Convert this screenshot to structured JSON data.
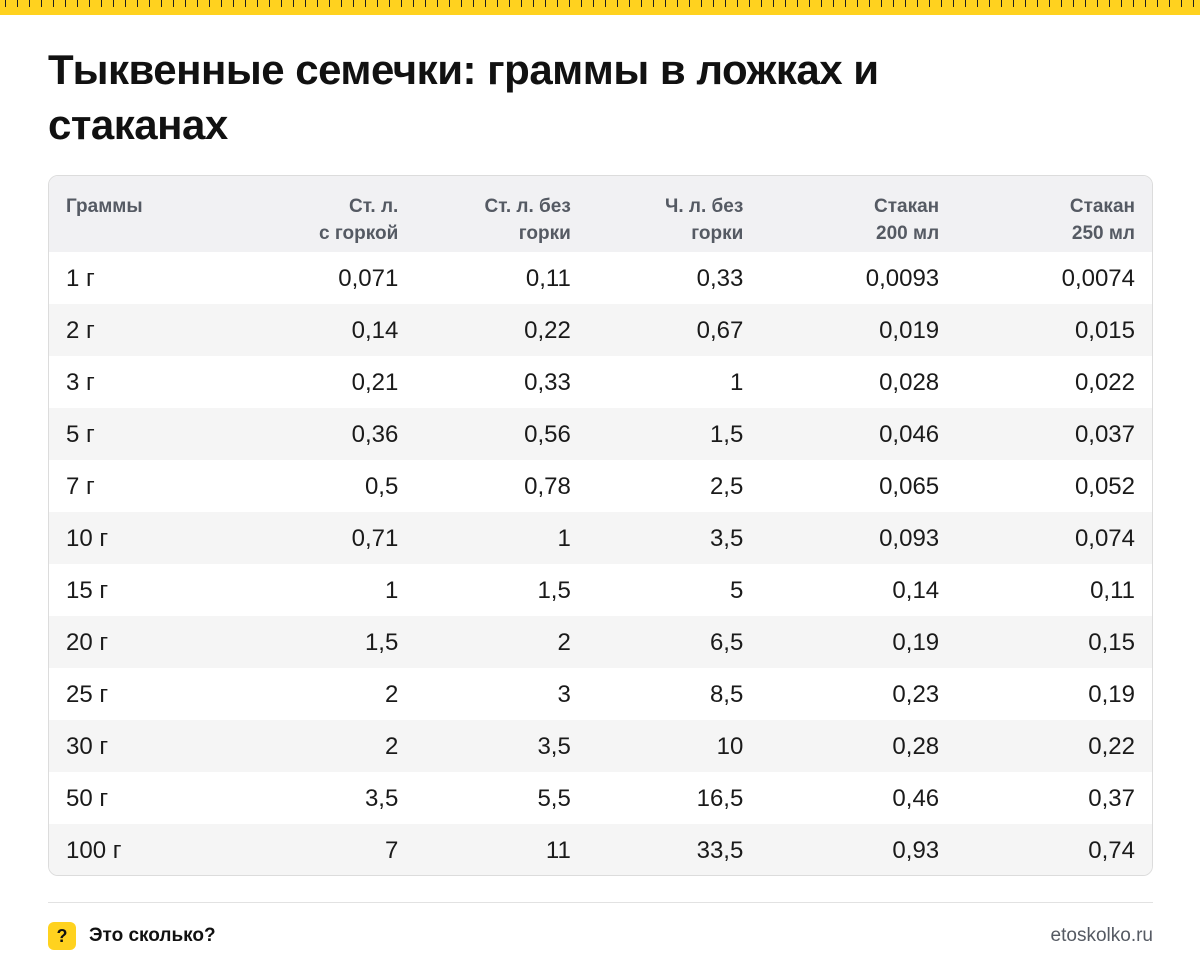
{
  "title": "Тыквенные семечки: граммы в ложках и стаканах",
  "table": {
    "headers": [
      [
        "Граммы"
      ],
      [
        "Ст. л.",
        "с горкой"
      ],
      [
        "Ст. л. без",
        "горки"
      ],
      [
        "Ч. л. без",
        "горки"
      ],
      [
        "Стакан",
        "200 мл"
      ],
      [
        "Стакан",
        "250 мл"
      ]
    ],
    "rows": [
      [
        "1 г",
        "0,071",
        "0,11",
        "0,33",
        "0,0093",
        "0,0074"
      ],
      [
        "2 г",
        "0,14",
        "0,22",
        "0,67",
        "0,019",
        "0,015"
      ],
      [
        "3 г",
        "0,21",
        "0,33",
        "1",
        "0,028",
        "0,022"
      ],
      [
        "5 г",
        "0,36",
        "0,56",
        "1,5",
        "0,046",
        "0,037"
      ],
      [
        "7 г",
        "0,5",
        "0,78",
        "2,5",
        "0,065",
        "0,052"
      ],
      [
        "10 г",
        "0,71",
        "1",
        "3,5",
        "0,093",
        "0,074"
      ],
      [
        "15 г",
        "1",
        "1,5",
        "5",
        "0,14",
        "0,11"
      ],
      [
        "20 г",
        "1,5",
        "2",
        "6,5",
        "0,19",
        "0,15"
      ],
      [
        "25 г",
        "2",
        "3",
        "8,5",
        "0,23",
        "0,19"
      ],
      [
        "30 г",
        "2",
        "3,5",
        "10",
        "0,28",
        "0,22"
      ],
      [
        "50 г",
        "3,5",
        "5,5",
        "16,5",
        "0,46",
        "0,37"
      ],
      [
        "100 г",
        "7",
        "11",
        "33,5",
        "0,93",
        "0,74"
      ]
    ]
  },
  "footer": {
    "icon_glyph": "?",
    "brand": "Это сколько?",
    "site": "etoskolko.ru"
  },
  "colors": {
    "accent": "#ffd21f",
    "header_bg": "#f1f1f3",
    "stripe_bg": "#f5f5f5",
    "muted_text": "#555a63"
  },
  "icons": [
    "question-icon"
  ]
}
